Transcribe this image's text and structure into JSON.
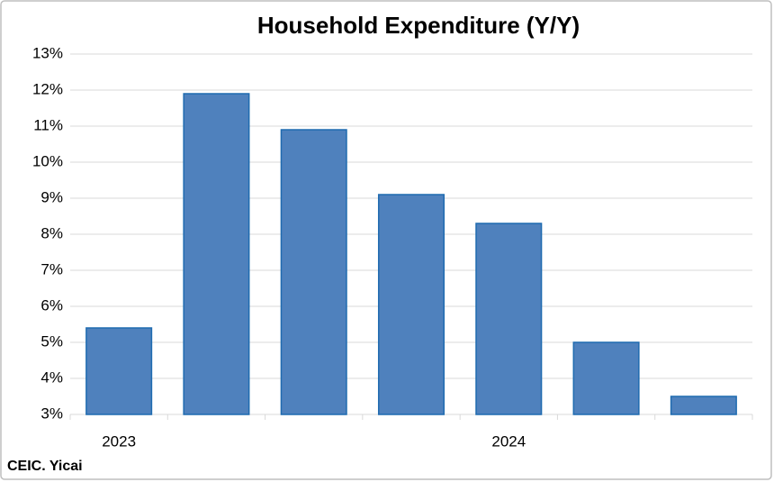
{
  "chart_data": {
    "type": "bar",
    "title": "Household Expenditure (Y/Y)",
    "categories": [
      "2023",
      null,
      null,
      null,
      "2024",
      null,
      null
    ],
    "values": [
      5.4,
      11.9,
      10.9,
      9.1,
      8.3,
      5.0,
      3.5
    ],
    "color": "#4f81bd",
    "ylim": [
      3,
      13
    ],
    "yticks": [
      {
        "value": 3,
        "label": "3%"
      },
      {
        "value": 4,
        "label": "4%"
      },
      {
        "value": 5,
        "label": "5%"
      },
      {
        "value": 6,
        "label": "6%"
      },
      {
        "value": 7,
        "label": "7%"
      },
      {
        "value": 8,
        "label": "8%"
      },
      {
        "value": 9,
        "label": "9%"
      },
      {
        "value": 10,
        "label": "10%"
      },
      {
        "value": 11,
        "label": "11%"
      },
      {
        "value": 12,
        "label": "12%"
      },
      {
        "value": 13,
        "label": "13%"
      }
    ],
    "grid": true,
    "source": "CEIC. Yicai"
  }
}
